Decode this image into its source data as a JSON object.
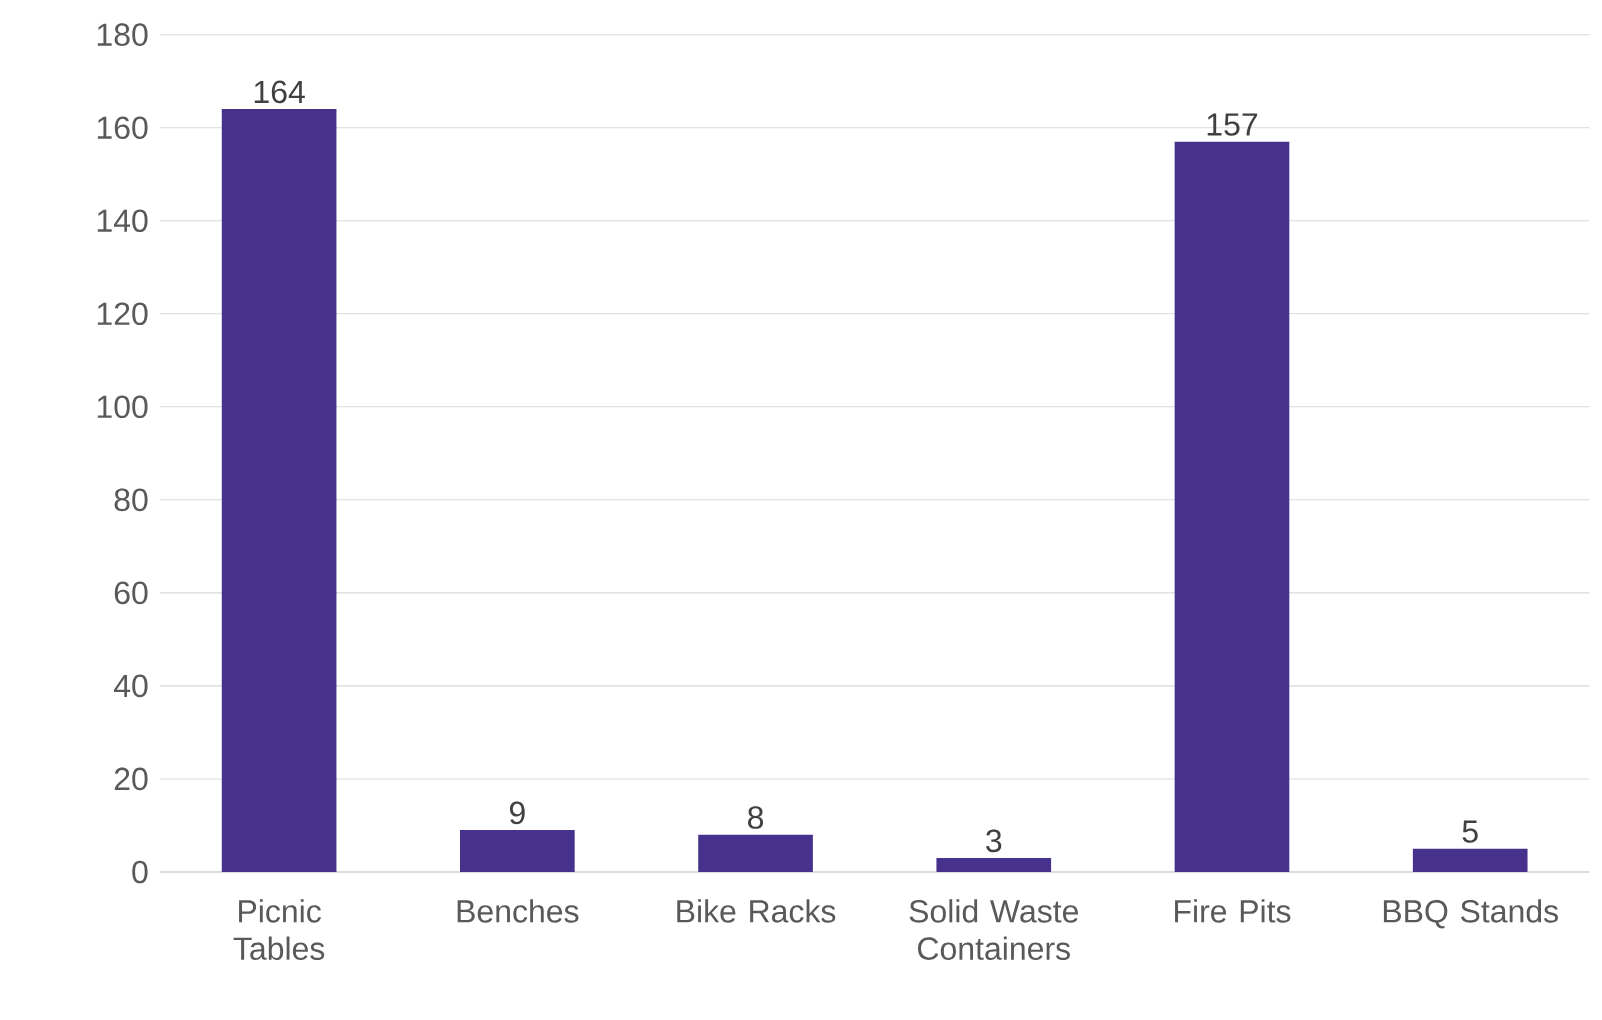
{
  "chart_data": {
    "type": "bar",
    "categories": [
      "Picnic Tables",
      "Benches",
      "Bike Racks",
      "Solid Waste Containers",
      "Fire Pits",
      "BBQ Stands"
    ],
    "values": [
      164,
      9,
      8,
      3,
      157,
      5
    ],
    "color": "#46318c",
    "ylim": [
      0,
      180
    ],
    "yticks": [
      0,
      20,
      40,
      60,
      80,
      100,
      120,
      140,
      160,
      180
    ],
    "grid": "y",
    "data_labels": true
  }
}
